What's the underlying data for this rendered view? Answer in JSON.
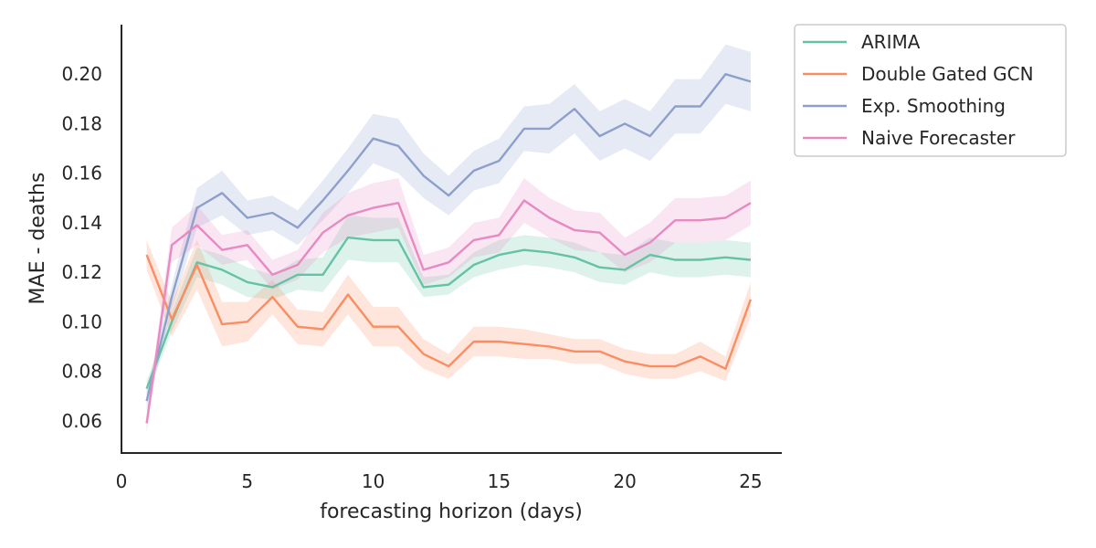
{
  "chart_data": {
    "type": "line",
    "title": "",
    "xlabel": "forecasting horizon (days)",
    "ylabel": "MAE - deaths",
    "xlim": [
      0,
      26.2
    ],
    "ylim": [
      0.047,
      0.22
    ],
    "xticks": [
      0,
      5,
      10,
      15,
      20,
      25
    ],
    "xtick_labels": [
      "0",
      "5",
      "10",
      "15",
      "20",
      "25"
    ],
    "yticks": [
      0.06,
      0.08,
      0.1,
      0.12,
      0.14,
      0.16,
      0.18,
      0.2
    ],
    "ytick_labels": [
      "0.06",
      "0.08",
      "0.10",
      "0.12",
      "0.14",
      "0.16",
      "0.18",
      "0.20"
    ],
    "grid": false,
    "legend_position": "outside-top-right",
    "x": [
      1,
      2,
      3,
      4,
      5,
      6,
      7,
      8,
      9,
      10,
      11,
      12,
      13,
      14,
      15,
      16,
      17,
      18,
      19,
      20,
      21,
      22,
      23,
      24,
      25
    ],
    "series": [
      {
        "name": "ARIMA",
        "color": "#66c2a5",
        "values": [
          0.073,
          0.1,
          0.124,
          0.121,
          0.116,
          0.114,
          0.119,
          0.119,
          0.134,
          0.133,
          0.133,
          0.114,
          0.115,
          0.123,
          0.127,
          0.129,
          0.128,
          0.126,
          0.122,
          0.121,
          0.127,
          0.125,
          0.125,
          0.126,
          0.125
        ],
        "ci_halfwidth": [
          0.003,
          0.004,
          0.006,
          0.006,
          0.006,
          0.005,
          0.006,
          0.007,
          0.009,
          0.009,
          0.009,
          0.004,
          0.004,
          0.005,
          0.006,
          0.006,
          0.006,
          0.006,
          0.006,
          0.006,
          0.007,
          0.007,
          0.007,
          0.007,
          0.007
        ]
      },
      {
        "name": "Double Gated GCN",
        "color": "#fc8d62",
        "values": [
          0.127,
          0.101,
          0.123,
          0.099,
          0.1,
          0.11,
          0.098,
          0.097,
          0.111,
          0.098,
          0.098,
          0.087,
          0.082,
          0.092,
          0.092,
          0.091,
          0.09,
          0.088,
          0.088,
          0.084,
          0.082,
          0.082,
          0.086,
          0.081,
          0.109
        ],
        "ci_halfwidth": [
          0.006,
          0.007,
          0.01,
          0.009,
          0.008,
          0.007,
          0.007,
          0.007,
          0.008,
          0.008,
          0.008,
          0.006,
          0.005,
          0.006,
          0.006,
          0.006,
          0.005,
          0.005,
          0.005,
          0.005,
          0.005,
          0.005,
          0.006,
          0.005,
          0.007
        ]
      },
      {
        "name": "Exp. Smoothing",
        "color": "#8da0cb",
        "values": [
          0.068,
          0.11,
          0.146,
          0.152,
          0.142,
          0.144,
          0.138,
          0.149,
          0.161,
          0.174,
          0.171,
          0.159,
          0.151,
          0.161,
          0.165,
          0.178,
          0.178,
          0.186,
          0.175,
          0.18,
          0.175,
          0.187,
          0.187,
          0.2,
          0.197
        ],
        "ci_halfwidth": [
          0.004,
          0.005,
          0.008,
          0.009,
          0.007,
          0.007,
          0.007,
          0.008,
          0.009,
          0.01,
          0.011,
          0.009,
          0.008,
          0.008,
          0.009,
          0.009,
          0.01,
          0.01,
          0.01,
          0.01,
          0.01,
          0.011,
          0.011,
          0.012,
          0.012
        ]
      },
      {
        "name": "Naive Forecaster",
        "color": "#e78ac3",
        "values": [
          0.059,
          0.131,
          0.139,
          0.129,
          0.131,
          0.119,
          0.123,
          0.136,
          0.143,
          0.146,
          0.148,
          0.121,
          0.124,
          0.133,
          0.135,
          0.149,
          0.142,
          0.137,
          0.136,
          0.127,
          0.132,
          0.141,
          0.141,
          0.142,
          0.148
        ],
        "ci_halfwidth": [
          0.004,
          0.007,
          0.008,
          0.006,
          0.006,
          0.006,
          0.006,
          0.008,
          0.009,
          0.01,
          0.01,
          0.006,
          0.006,
          0.007,
          0.007,
          0.009,
          0.008,
          0.008,
          0.008,
          0.007,
          0.008,
          0.009,
          0.009,
          0.009,
          0.009
        ]
      }
    ]
  }
}
